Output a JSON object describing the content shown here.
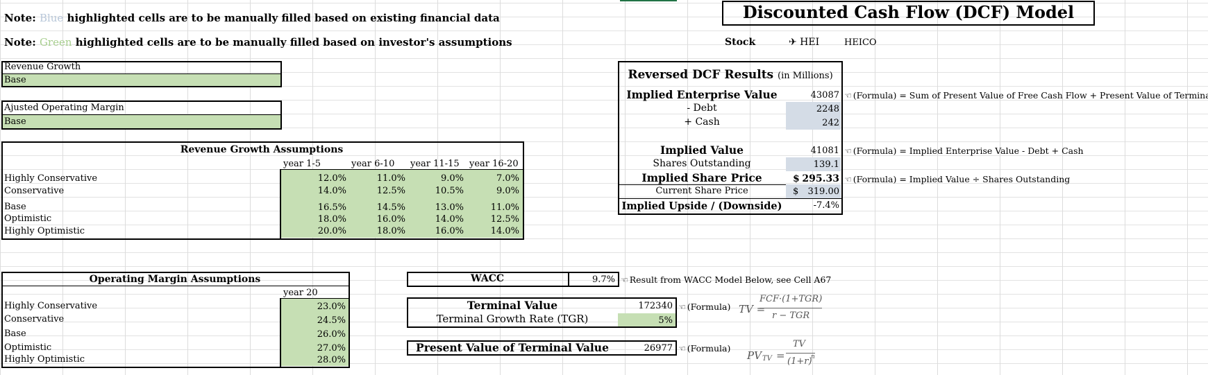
{
  "notes": {
    "note1_prefix": "Note: ",
    "note1_colorword": "Blue",
    "note1_rest": " highlighted cells are to be manually filled based on existing financial data",
    "note2_prefix": "Note: ",
    "note2_colorword": "Green",
    "note2_rest": " highlighted cells are to be manually filled based on investor's assumptions",
    "blue_color": "#b8c7d9",
    "green_color": "#a8cf8f"
  },
  "title": "Discounted Cash Flow (DCF) Model",
  "stock": {
    "label": "Stock",
    "ticker": "✈ HEI",
    "name": "HEICO"
  },
  "selectors": {
    "revenue_growth_label": "Revenue Growth",
    "revenue_growth_value": "Base",
    "margin_label": "Ajusted Operating Margin",
    "margin_value": "Base"
  },
  "revenue_growth": {
    "title": "Revenue Growth Assumptions",
    "columns": [
      "year 1-5",
      "year 6-10",
      "year 11-15",
      "year 16-20"
    ],
    "rows": [
      {
        "label": "Highly Conservative",
        "values": [
          "12.0%",
          "11.0%",
          "9.0%",
          "7.0%"
        ]
      },
      {
        "label": "Conservative",
        "values": [
          "14.0%",
          "12.5%",
          "10.5%",
          "9.0%"
        ]
      },
      {
        "label": "Base",
        "values": [
          "16.5%",
          "14.5%",
          "13.0%",
          "11.0%"
        ]
      },
      {
        "label": "Optimistic",
        "values": [
          "18.0%",
          "16.0%",
          "14.0%",
          "12.5%"
        ]
      },
      {
        "label": "Highly Optimistic",
        "values": [
          "20.0%",
          "18.0%",
          "16.0%",
          "14.0%"
        ]
      }
    ]
  },
  "operating_margin": {
    "title": "Operating Margin Assumptions",
    "column": "year 20",
    "rows": [
      {
        "label": "Highly Conservative",
        "value": "23.0%"
      },
      {
        "label": "Conservative",
        "value": "24.5%"
      },
      {
        "label": "Base",
        "value": "26.0%"
      },
      {
        "label": "Optimistic",
        "value": "27.0%"
      },
      {
        "label": "Highly Optimistic",
        "value": "28.0%"
      }
    ]
  },
  "reversed_dcf": {
    "title": "Reversed DCF Results",
    "title_suffix": "(in Millions)",
    "ev_label": "Implied Enterprise Value",
    "ev_value": "43087",
    "ev_note": "(Formula) = Sum of Present Value of Free Cash Flow + Present Value of Terminal Value",
    "debt_label": "- Debt",
    "debt_value": "2248",
    "cash_label": "+ Cash",
    "cash_value": "242",
    "iv_label": "Implied Value",
    "iv_value": "41081",
    "iv_note": "(Formula) = Implied Enterprise Value - Debt + Cash",
    "shares_label": "Shares Outstanding",
    "shares_value": "139.1",
    "isp_label": "Implied Share Price",
    "isp_dollar": "$",
    "isp_value": "295.33",
    "isp_note": "(Formula) = Implied Value ÷ Shares Outstanding",
    "csp_label": "Current Share Price",
    "csp_dollar": "$",
    "csp_value": "319.00",
    "upside_label": "Implied Upside / (Downside)",
    "upside_value": "-7.4%"
  },
  "wacc": {
    "label": "WACC",
    "value": "9.7%",
    "note": "Result from WACC Model Below, see Cell A67"
  },
  "terminal": {
    "title": "Terminal Value",
    "value": "172340",
    "note": "(Formula)",
    "tgr_label": "Terminal Growth Rate (TGR)",
    "tgr_value": "5%",
    "pv_label": "Present Value of Terminal Value",
    "pv_value": "26977",
    "pv_note": "(Formula)"
  },
  "formulas": {
    "tv_lhs": "TV =",
    "tv_num": "FCF·(1+TGR)",
    "tv_den": "r − TGR",
    "pv_lhs": "PV",
    "pv_sub": "TV",
    "pv_eq": "=",
    "pv_num": "TV",
    "pv_den": "(1+r)",
    "pv_exp": "n"
  },
  "icons": {
    "note_pointer": "pointing-hand-icon"
  }
}
